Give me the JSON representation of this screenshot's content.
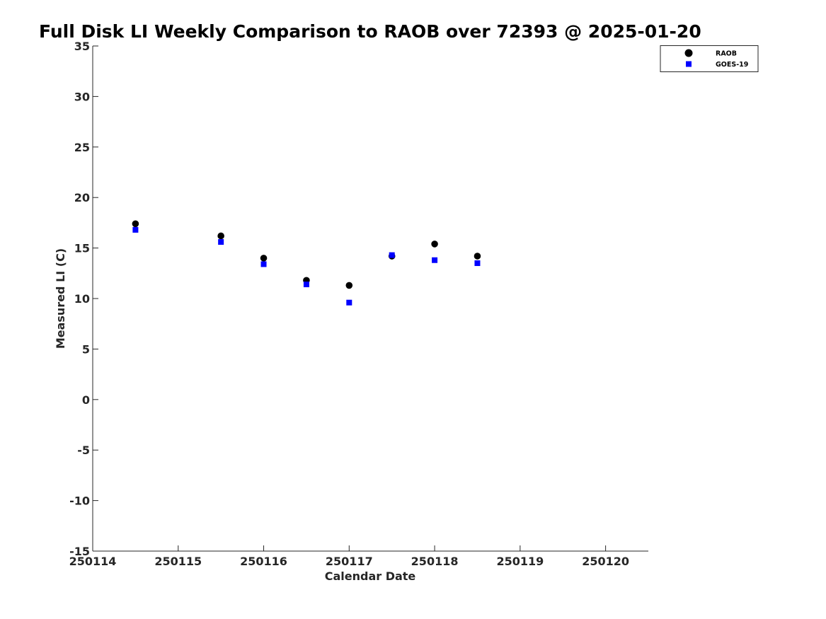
{
  "chart_data": {
    "type": "scatter",
    "title": "Full Disk LI Weekly Comparison to RAOB over 72393 @ 2025-01-20",
    "xlabel": "Calendar Date",
    "ylabel": "Measured LI (C)",
    "xlim": [
      250114,
      250120.5
    ],
    "ylim": [
      -15,
      35
    ],
    "xticks": [
      250114,
      250115,
      250116,
      250117,
      250118,
      250119,
      250120
    ],
    "xtick_labels": [
      "250114",
      "250115",
      "250116",
      "250117",
      "250118",
      "250119",
      "250120"
    ],
    "yticks": [
      -15,
      -10,
      -5,
      0,
      5,
      10,
      15,
      20,
      25,
      30,
      35
    ],
    "ytick_labels": [
      "-15",
      "-10",
      "-5",
      "0",
      "5",
      "10",
      "15",
      "20",
      "25",
      "30",
      "35"
    ],
    "grid": false,
    "legend_position": "top-right",
    "series": [
      {
        "name": "RAOB",
        "marker": "circle",
        "color": "#000000",
        "x": [
          250114.5,
          250115.5,
          250116.0,
          250116.5,
          250117.0,
          250117.5,
          250118.0,
          250118.5
        ],
        "y": [
          17.4,
          16.2,
          14.0,
          11.8,
          11.3,
          14.2,
          15.4,
          14.2
        ]
      },
      {
        "name": "GOES-19",
        "marker": "square",
        "color": "#0000ff",
        "x": [
          250114.5,
          250115.5,
          250116.0,
          250116.5,
          250117.0,
          250117.5,
          250118.0,
          250118.5
        ],
        "y": [
          16.8,
          15.6,
          13.4,
          11.4,
          9.6,
          14.3,
          13.8,
          13.5
        ]
      }
    ]
  }
}
